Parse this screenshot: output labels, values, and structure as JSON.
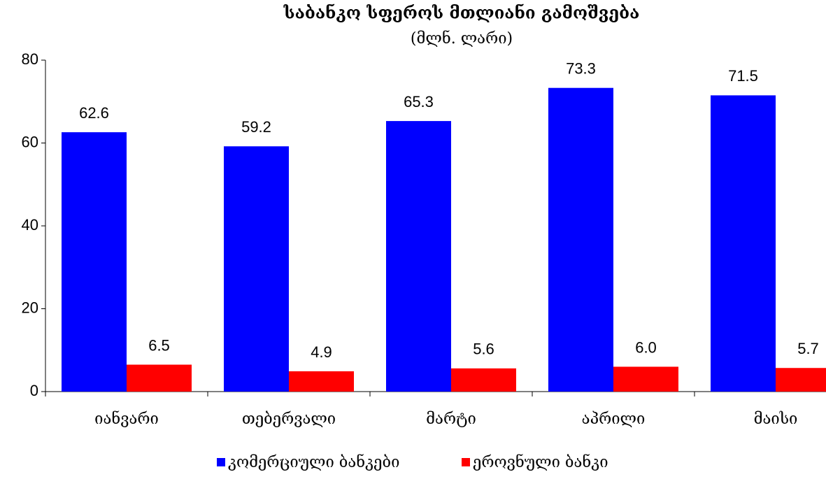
{
  "chart_data": {
    "type": "bar",
    "title": "საბანკო სფეროს მთლიანი გამოშვება",
    "subtitle": "(მლნ. ლარი)",
    "categories": [
      "იანვარი",
      "თებერვალი",
      "მარტი",
      "აპრილი",
      "მაისი"
    ],
    "series": [
      {
        "name": "კომერციული ბანკები",
        "color": "#0000ff",
        "values": [
          62.6,
          59.2,
          65.3,
          73.3,
          71.5
        ]
      },
      {
        "name": "ეროვნული ბანკი",
        "color": "#ff0000",
        "values": [
          6.5,
          4.9,
          5.6,
          6,
          5.7
        ],
        "value_labels": [
          "6.5",
          "4.9",
          "5.6",
          "6.0",
          "5.7"
        ]
      }
    ],
    "ylim": [
      0,
      80
    ],
    "yticks": [
      0,
      20,
      40,
      60,
      80
    ],
    "grid": false,
    "legend": "bottom"
  }
}
